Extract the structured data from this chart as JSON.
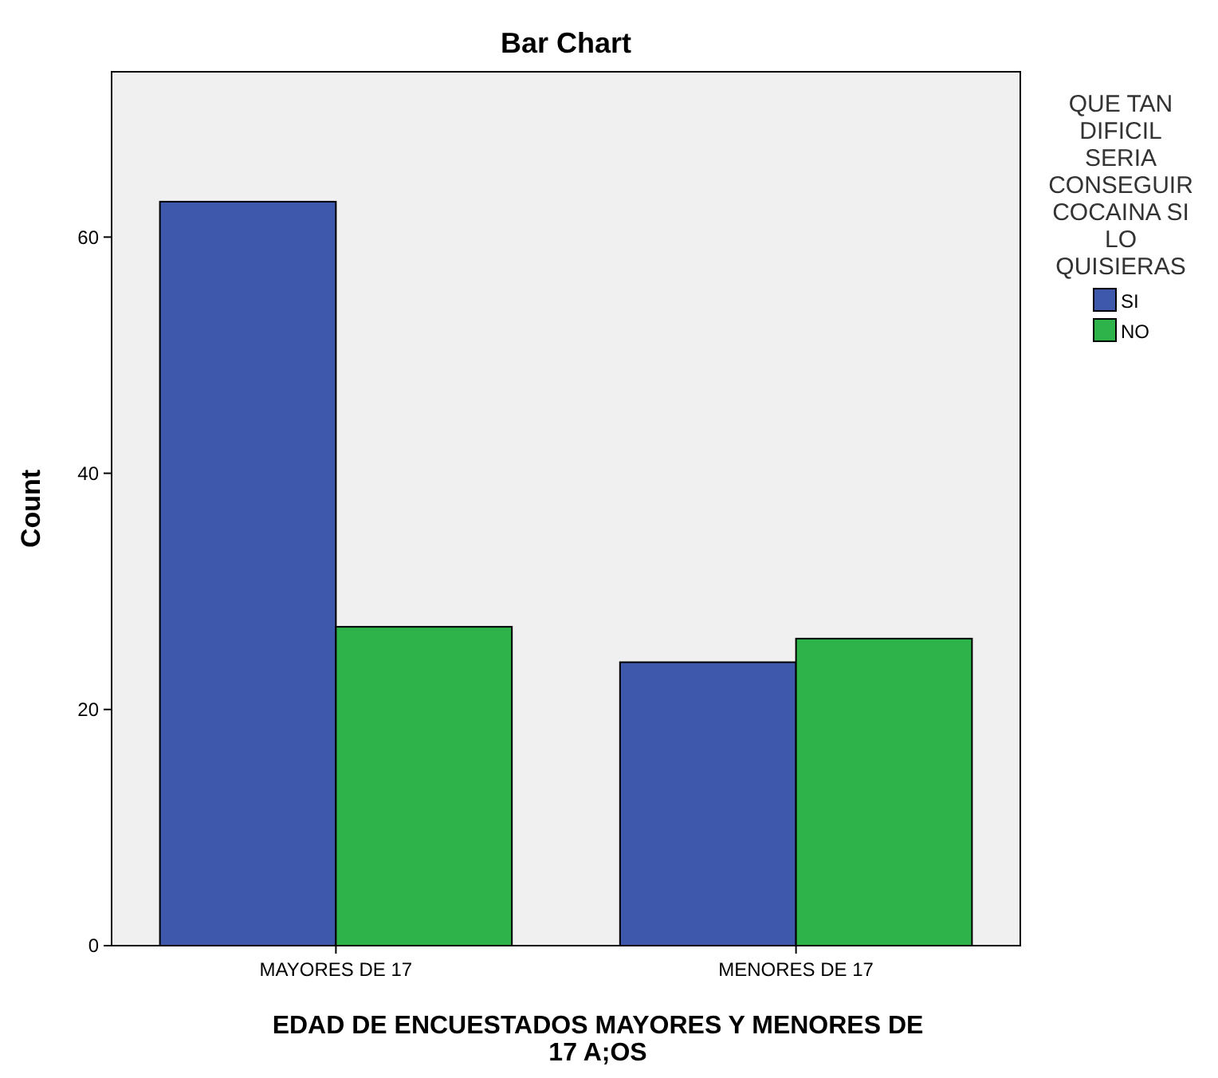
{
  "chart_data": {
    "type": "bar",
    "title": "Bar Chart",
    "xlabel": "EDAD DE ENCUESTADOS MAYORES Y MENORES DE 17 A;OS",
    "ylabel": "Count",
    "legend_title": "QUE TAN DIFICIL SERIA CONSEGUIR COCAINA SI LO QUISIERAS",
    "categories": [
      "MAYORES DE 17",
      "MENORES DE 17"
    ],
    "series": [
      {
        "name": "SI",
        "color": "#3e58ac",
        "values": [
          63,
          24
        ]
      },
      {
        "name": "NO",
        "color": "#2db34a",
        "values": [
          27,
          26
        ]
      }
    ],
    "ylim": [
      0,
      74
    ],
    "yticks": [
      0,
      20,
      40,
      60
    ],
    "grid": false,
    "legend": "top right"
  }
}
